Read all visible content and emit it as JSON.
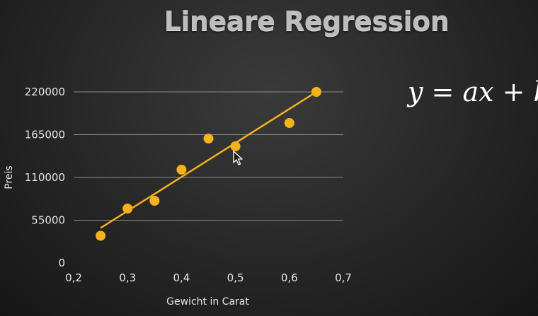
{
  "slide": {
    "title": "Lineare Regression",
    "formula": "y = ax + b"
  },
  "chart_data": {
    "type": "scatter",
    "title": "",
    "xlabel": "Gewicht in Carat",
    "ylabel": "Preis",
    "xlim": [
      0.2,
      0.7
    ],
    "ylim": [
      0,
      220000
    ],
    "x_ticks": [
      "0,2",
      "0,3",
      "0,4",
      "0,5",
      "0,6",
      "0,7"
    ],
    "y_ticks": [
      "0",
      "55000",
      "110000",
      "165000",
      "220000"
    ],
    "grid": true,
    "x": [
      0.25,
      0.3,
      0.35,
      0.4,
      0.45,
      0.5,
      0.6,
      0.65
    ],
    "y": [
      35000,
      70000,
      80000,
      120000,
      160000,
      150000,
      180000,
      220000
    ],
    "trendline": {
      "x": [
        0.25,
        0.65
      ],
      "y": [
        45000,
        220000
      ]
    },
    "colors": {
      "points": "#f5b21c",
      "line": "#f5b21c",
      "grid": "#8a8a8a"
    }
  }
}
